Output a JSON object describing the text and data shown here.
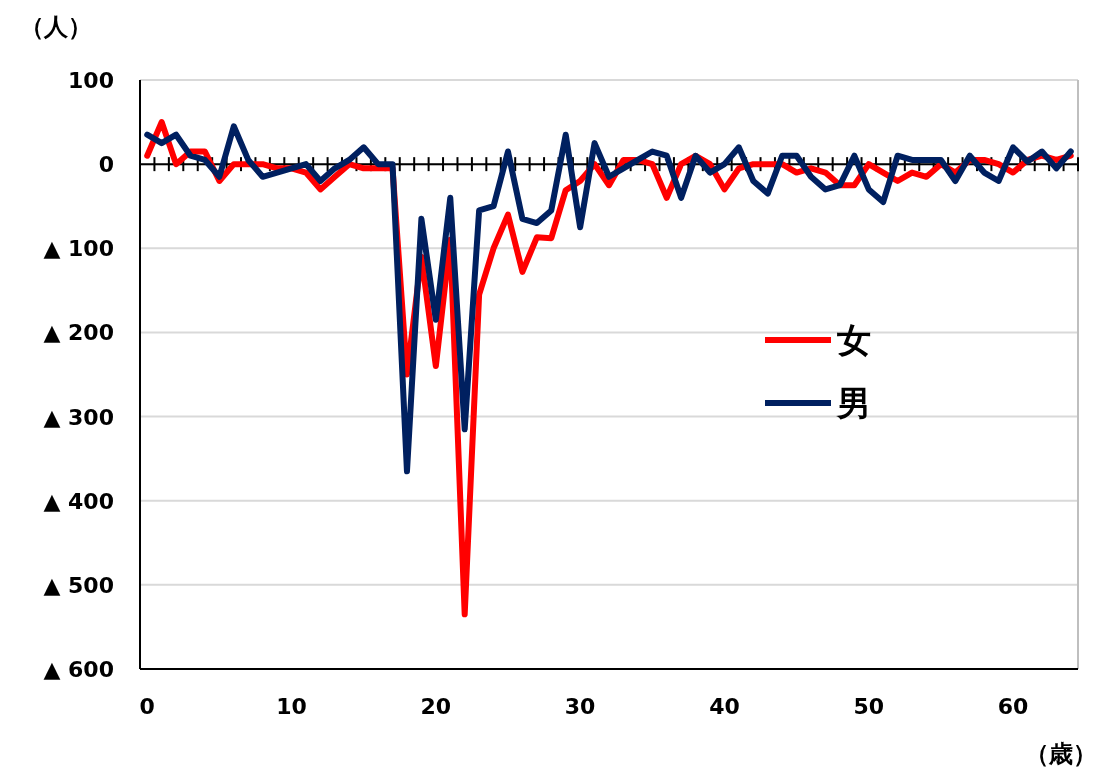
{
  "chart_data": {
    "type": "line",
    "ylabel": "（人）",
    "xlabel": "（歳）",
    "categories": [
      "0",
      null,
      null,
      null,
      null,
      null,
      null,
      null,
      null,
      null,
      "10",
      null,
      null,
      null,
      null,
      null,
      null,
      null,
      null,
      null,
      "20",
      null,
      null,
      null,
      null,
      null,
      null,
      null,
      null,
      null,
      "30",
      null,
      null,
      null,
      null,
      null,
      null,
      null,
      null,
      null,
      "40",
      null,
      null,
      null,
      null,
      null,
      null,
      null,
      null,
      null,
      "50",
      null,
      null,
      null,
      null,
      null,
      null,
      null,
      null,
      null,
      "60",
      null,
      null,
      null,
      null
    ],
    "ylim": [
      -600,
      100
    ],
    "yticks": [
      100,
      0,
      {
        "value": -100,
        "label": "▲ 100"
      },
      {
        "value": -200,
        "label": "▲ 200"
      },
      {
        "value": -300,
        "label": "▲ 300"
      },
      {
        "value": -400,
        "label": "▲ 400"
      },
      {
        "value": -500,
        "label": "▲ 500"
      },
      {
        "value": -600,
        "label": "▲ 600"
      }
    ],
    "grid": "y",
    "legend": "right",
    "marker": "none",
    "line_style": "solid",
    "series": [
      {
        "name": "女",
        "color": "#ff0000",
        "values": [
          10,
          50,
          0,
          15,
          15,
          -20,
          0,
          0,
          0,
          -5,
          -5,
          -10,
          -30,
          -15,
          0,
          -5,
          -5,
          -5,
          -250,
          -110,
          -240,
          -90,
          -535,
          -155,
          -100,
          -60,
          -128,
          -87,
          -88,
          -31,
          -20,
          0,
          -25,
          5,
          5,
          0,
          -40,
          0,
          10,
          0,
          -30,
          -5,
          0,
          0,
          0,
          -10,
          -5,
          -10,
          -25,
          -25,
          0,
          -10,
          -20,
          -10,
          -15,
          0,
          -10,
          5,
          5,
          0,
          -10,
          5,
          10,
          5,
          10
        ]
      },
      {
        "name": "男",
        "color": "#002060",
        "values": [
          35,
          25,
          35,
          10,
          5,
          -15,
          45,
          5,
          -15,
          -10,
          -5,
          0,
          -20,
          -5,
          5,
          20,
          0,
          0,
          -365,
          -65,
          -185,
          -40,
          -315,
          -55,
          -50,
          15,
          -65,
          -70,
          -55,
          35,
          -75,
          25,
          -15,
          -5,
          5,
          15,
          10,
          -40,
          10,
          -10,
          0,
          20,
          -20,
          -35,
          10,
          10,
          -15,
          -30,
          -25,
          10,
          -30,
          -45,
          10,
          5,
          5,
          5,
          -20,
          10,
          -10,
          -20,
          20,
          3,
          15,
          -5,
          15
        ]
      }
    ]
  }
}
